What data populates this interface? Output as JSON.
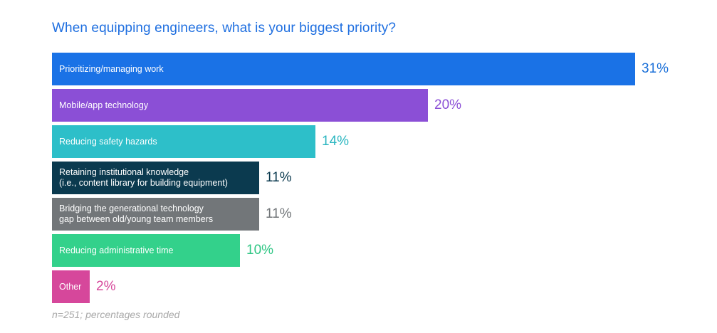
{
  "chart_data": {
    "type": "bar",
    "orientation": "horizontal",
    "title": "When equipping engineers, what is your biggest priority?",
    "categories": [
      "Prioritizing/managing work",
      "Mobile/app technology",
      "Reducing safety hazards",
      "Retaining institutional knowledge\n(i.e., content library for building equipment)",
      "Bridging the generational technology\ngap between old/young team members",
      "Reducing administrative time",
      "Other"
    ],
    "values": [
      31,
      20,
      14,
      11,
      11,
      10,
      2
    ],
    "value_labels": [
      "31%",
      "20%",
      "14%",
      "11%",
      "11%",
      "10%",
      "2%"
    ],
    "colors": [
      "#1a72e6",
      "#8b4fd6",
      "#2dbfc9",
      "#0b3a4f",
      "#727679",
      "#33d18b",
      "#d6479b"
    ],
    "value_label_colors": [
      "#1a6fd8",
      "#8b4fd6",
      "#2ab6c0",
      "#0b3a4f",
      "#727679",
      "#2fc684",
      "#d6479b"
    ],
    "xlim": [
      0,
      31
    ],
    "grid": false,
    "legend": "none"
  },
  "footnote": "n=251; percentages rounded"
}
